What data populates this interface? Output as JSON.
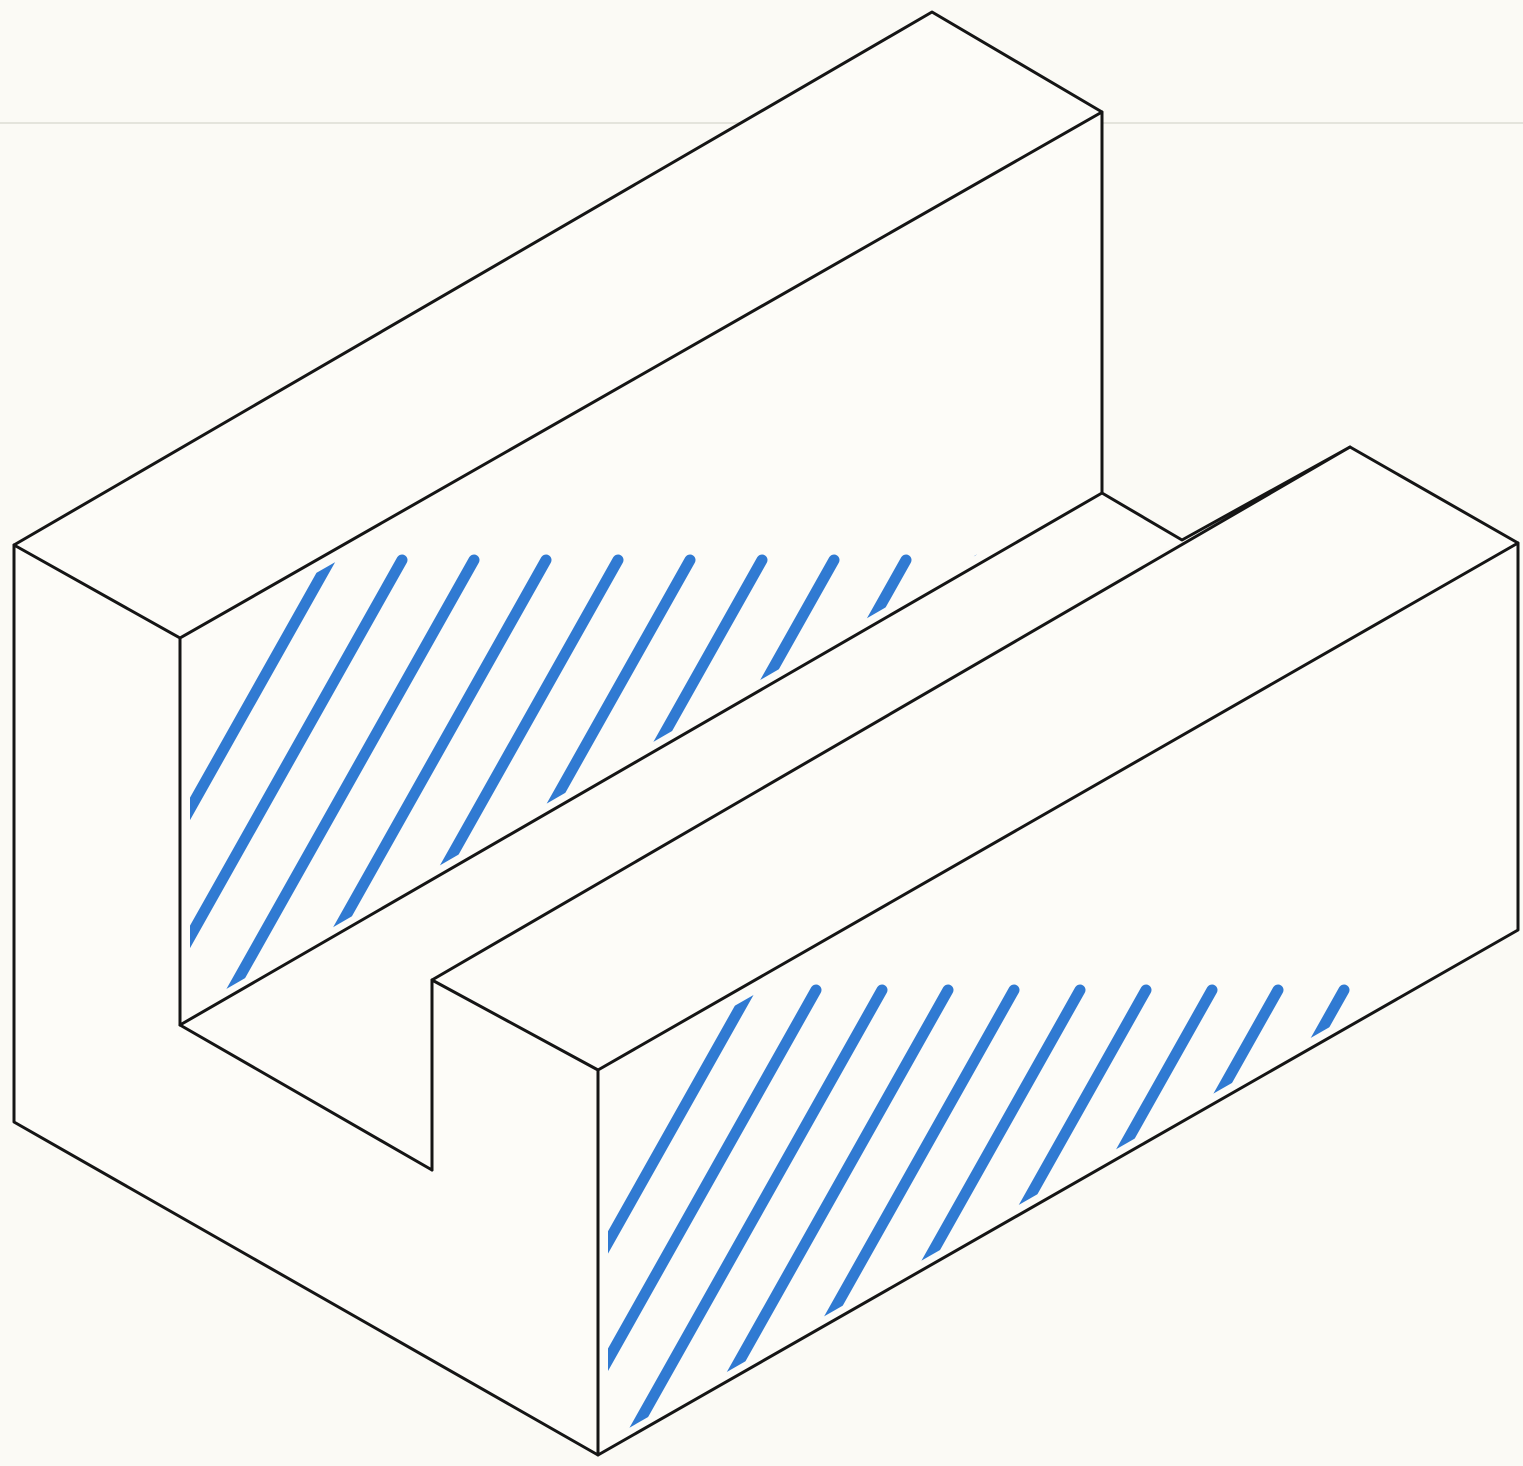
{
  "drawing": {
    "subject": "isometric-u-channel-block",
    "colors": {
      "paper": "#fbfaf5",
      "face": "#fdfcf8",
      "outline": "#151515",
      "hatch": "#1f6fcf",
      "crease": "#e4e4dc"
    },
    "hatched_faces": [
      "back-wall-inner-face",
      "right-wall-front-face"
    ]
  }
}
